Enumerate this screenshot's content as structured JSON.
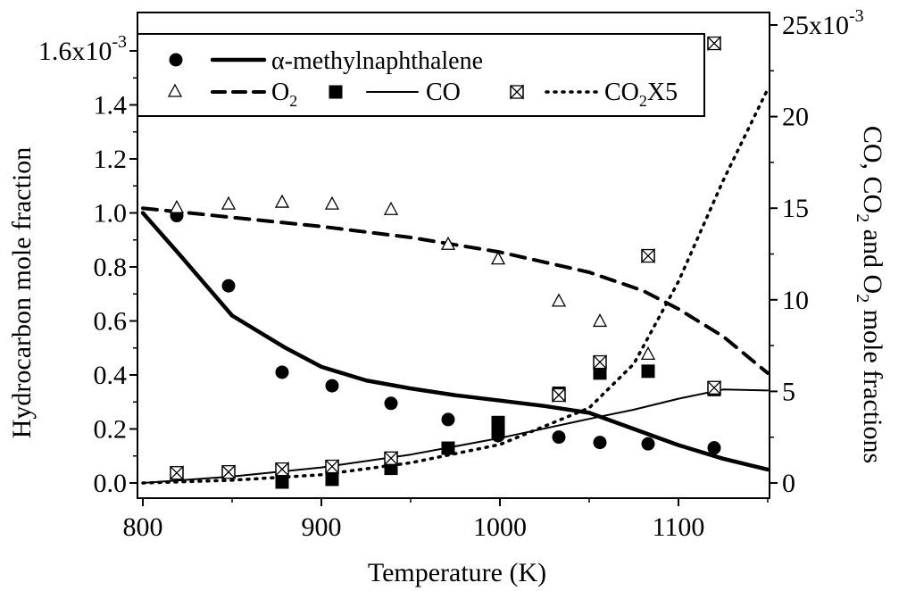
{
  "chart_data": {
    "type": "line",
    "x_axis": {
      "label": "Temperature (K)",
      "range": [
        800,
        1150
      ],
      "ticks": [
        "800",
        "900",
        "1000",
        "1100"
      ]
    },
    "y_left": {
      "label": "Hydrocarbon mole fraction",
      "range": [
        0,
        1.6
      ],
      "ticks": [
        "0.0",
        "0.2",
        "0.4",
        "0.6",
        "0.8",
        "1.0",
        "1.2",
        "1.4",
        "1.6x10"
      ],
      "top_exponent": "-3"
    },
    "y_right": {
      "label_parts": [
        "CO, CO",
        "2",
        " and O",
        "2",
        " mole fractions"
      ],
      "range": [
        0,
        25
      ],
      "ticks": [
        "0",
        "5",
        "10",
        "15",
        "20",
        "25x10"
      ],
      "top_exponent": "-3"
    },
    "legend": {
      "position": "top-left",
      "entries": [
        {
          "symbol": "filled-circle",
          "line": "thick-solid",
          "label": "α-methylnaphthalene"
        },
        {
          "symbol": "open-triangle",
          "line": "dashed",
          "label_base": "O",
          "label_sub": "2"
        },
        {
          "symbol": "filled-square",
          "line": "thin-solid",
          "label": "CO"
        },
        {
          "symbol": "bowtie",
          "line": "dotted",
          "label_base": "CO",
          "label_sub": "2",
          "label_tail": "X5"
        }
      ]
    },
    "series": [
      {
        "name": "α-methylnaphthalene",
        "axis": "left",
        "unit_multiplier": "1e-3",
        "points_x": [
          819,
          848,
          878,
          906,
          939,
          971,
          999,
          1033,
          1056,
          1083,
          1120
        ],
        "points_y": [
          0.99,
          0.73,
          0.41,
          0.36,
          0.295,
          0.235,
          0.175,
          0.17,
          0.15,
          0.145,
          0.13
        ],
        "model_x": [
          800,
          820,
          850,
          880,
          900,
          925,
          950,
          975,
          1000,
          1025,
          1050,
          1075,
          1100,
          1125,
          1150
        ],
        "model_y": [
          1.0,
          0.85,
          0.62,
          0.5,
          0.43,
          0.38,
          0.35,
          0.325,
          0.305,
          0.285,
          0.26,
          0.2,
          0.14,
          0.09,
          0.05
        ]
      },
      {
        "name": "O2",
        "axis": "right",
        "unit_multiplier": "1e-3",
        "points_x": [
          819,
          848,
          878,
          906,
          939,
          971,
          999,
          1033,
          1056,
          1083
        ],
        "points_y": [
          15.0,
          15.2,
          15.3,
          15.2,
          14.9,
          13.0,
          12.2,
          9.9,
          8.8,
          7.0
        ],
        "model_x": [
          800,
          850,
          900,
          950,
          1000,
          1050,
          1080,
          1100,
          1125,
          1150
        ],
        "model_y": [
          15.0,
          14.5,
          14.0,
          13.4,
          12.6,
          11.5,
          10.5,
          9.5,
          8.0,
          6.0
        ]
      },
      {
        "name": "CO",
        "axis": "right",
        "unit_multiplier": "1e-3",
        "points_x": [
          878,
          906,
          939,
          971,
          999,
          999,
          1033,
          1056,
          1083,
          1120
        ],
        "points_y": [
          0.05,
          0.2,
          0.8,
          1.9,
          2.8,
          3.3,
          4.9,
          6.0,
          6.1,
          5.1
        ],
        "model_x": [
          800,
          850,
          900,
          950,
          1000,
          1050,
          1075,
          1100,
          1125,
          1150
        ],
        "model_y": [
          0.0,
          0.35,
          0.85,
          1.55,
          2.45,
          3.5,
          4.0,
          4.6,
          5.1,
          5.05
        ]
      },
      {
        "name": "CO2X5",
        "axis": "right",
        "unit_multiplier": "1e-3",
        "points_x": [
          819,
          848,
          878,
          906,
          939,
          1033,
          1056,
          1083,
          1120,
          1120
        ],
        "points_y": [
          0.55,
          0.6,
          0.75,
          0.9,
          1.35,
          4.8,
          6.6,
          12.4,
          5.2,
          24.0
        ],
        "model_x": [
          800,
          850,
          900,
          950,
          1000,
          1050,
          1075,
          1100,
          1125,
          1150
        ],
        "model_y": [
          0.0,
          0.15,
          0.45,
          1.1,
          2.1,
          4.1,
          6.5,
          11.0,
          16.5,
          21.5
        ]
      }
    ]
  }
}
